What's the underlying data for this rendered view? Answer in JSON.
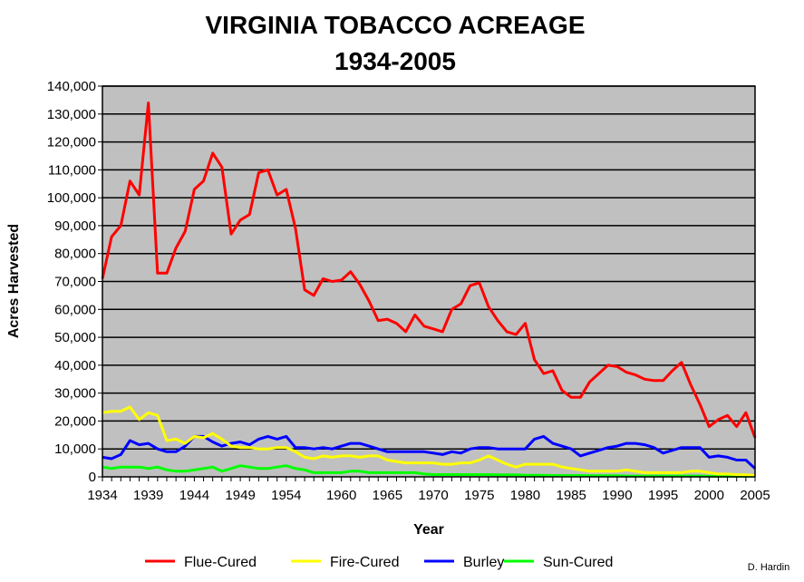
{
  "chart_data": {
    "type": "line",
    "title": [
      "VIRGINIA TOBACCO ACREAGE",
      "1934-2005"
    ],
    "xlabel": "Year",
    "ylabel": "Acres Harvested",
    "credit": "D. Hardin",
    "xlim": [
      1934,
      2005
    ],
    "ylim": [
      0,
      140000
    ],
    "ytick_step": 10000,
    "yticks": [
      "0",
      "10,000",
      "20,000",
      "30,000",
      "40,000",
      "50,000",
      "60,000",
      "70,000",
      "80,000",
      "90,000",
      "100,000",
      "110,000",
      "120,000",
      "130,000",
      "140,000"
    ],
    "xticks": [
      1934,
      1939,
      1944,
      1949,
      1954,
      1960,
      1965,
      1970,
      1975,
      1980,
      1985,
      1990,
      1995,
      2000,
      2005
    ],
    "grid": true,
    "legend_position": "bottom",
    "plot_background": "#c0c0c0",
    "x": [
      1934,
      1935,
      1936,
      1937,
      1938,
      1939,
      1940,
      1941,
      1942,
      1943,
      1944,
      1945,
      1946,
      1947,
      1948,
      1949,
      1950,
      1951,
      1952,
      1953,
      1954,
      1955,
      1956,
      1957,
      1958,
      1959,
      1960,
      1961,
      1962,
      1963,
      1964,
      1965,
      1966,
      1967,
      1968,
      1969,
      1970,
      1971,
      1972,
      1973,
      1974,
      1975,
      1976,
      1977,
      1978,
      1979,
      1980,
      1981,
      1982,
      1983,
      1984,
      1985,
      1986,
      1987,
      1988,
      1989,
      1990,
      1991,
      1992,
      1993,
      1994,
      1995,
      1996,
      1997,
      1998,
      1999,
      2000,
      2001,
      2002,
      2003,
      2004,
      2005
    ],
    "series": [
      {
        "name": "Flue-Cured",
        "color": "#ff0000",
        "values": [
          71000,
          86000,
          90000,
          106000,
          101000,
          134000,
          73000,
          73000,
          82000,
          88000,
          103000,
          106000,
          116000,
          111000,
          87000,
          92000,
          94000,
          109000,
          110000,
          101000,
          103000,
          89000,
          67000,
          65000,
          71000,
          70000,
          70500,
          73500,
          69000,
          63000,
          56000,
          56500,
          55000,
          52000,
          58000,
          54000,
          53000,
          52000,
          60000,
          62000,
          68500,
          69500,
          61000,
          56000,
          52000,
          51000,
          55000,
          42000,
          37000,
          38000,
          31000,
          28500,
          28500,
          34000,
          37000,
          40000,
          39500,
          37500,
          36500,
          35000,
          34500,
          34500,
          38000,
          41000,
          33000,
          26000,
          18000,
          20500,
          22000,
          18000,
          23000,
          14000
        ]
      },
      {
        "name": "Fire-Cured",
        "color": "#ffff00",
        "values": [
          23000,
          23500,
          23500,
          25000,
          20500,
          23000,
          22000,
          13000,
          13500,
          12000,
          14500,
          14000,
          15500,
          13500,
          11000,
          10500,
          10500,
          10000,
          10000,
          10500,
          10500,
          9000,
          7000,
          6500,
          7500,
          7000,
          7500,
          7500,
          7000,
          7500,
          7500,
          6000,
          5500,
          5000,
          5000,
          5000,
          5000,
          4500,
          4500,
          5000,
          5000,
          6000,
          7500,
          6000,
          4500,
          3500,
          4500,
          4500,
          4500,
          4500,
          3500,
          3000,
          2500,
          2000,
          2000,
          2000,
          2000,
          2500,
          2000,
          1500,
          1500,
          1500,
          1500,
          1500,
          2000,
          2000,
          1500,
          1000,
          1000,
          800,
          700,
          500
        ]
      },
      {
        "name": "Burley",
        "color": "#0000ff",
        "values": [
          7000,
          6500,
          8000,
          13000,
          11500,
          12000,
          10000,
          9000,
          9000,
          11000,
          14500,
          14500,
          12500,
          11000,
          12000,
          12500,
          11500,
          13500,
          14500,
          13500,
          14500,
          10500,
          10500,
          10000,
          10500,
          10000,
          11000,
          12000,
          12000,
          11000,
          10000,
          9000,
          9000,
          9000,
          9000,
          9000,
          8500,
          8000,
          9000,
          8500,
          10000,
          10500,
          10500,
          10000,
          10000,
          10000,
          10000,
          13500,
          14500,
          12000,
          11000,
          10000,
          7500,
          8500,
          9500,
          10500,
          11000,
          12000,
          12000,
          11500,
          10500,
          8500,
          9500,
          10500,
          10500,
          10500,
          7000,
          7500,
          7000,
          6000,
          6000,
          3000
        ]
      },
      {
        "name": "Sun-Cured",
        "color": "#00ff00",
        "values": [
          3500,
          3000,
          3500,
          3500,
          3500,
          3000,
          3500,
          2500,
          2000,
          2000,
          2500,
          3000,
          3500,
          2000,
          3000,
          4000,
          3500,
          3000,
          3000,
          3500,
          4000,
          3000,
          2500,
          1500,
          1500,
          1500,
          1500,
          2000,
          2000,
          1500,
          1500,
          1500,
          1500,
          1500,
          1500,
          1000,
          800,
          800,
          800,
          800,
          800,
          800,
          800,
          700,
          700,
          700,
          600,
          600,
          600,
          500,
          500,
          500,
          500,
          400,
          400,
          400,
          400,
          300,
          300,
          300,
          300,
          300,
          300,
          300,
          300,
          300,
          200,
          200,
          200,
          200,
          200,
          200
        ]
      }
    ]
  }
}
